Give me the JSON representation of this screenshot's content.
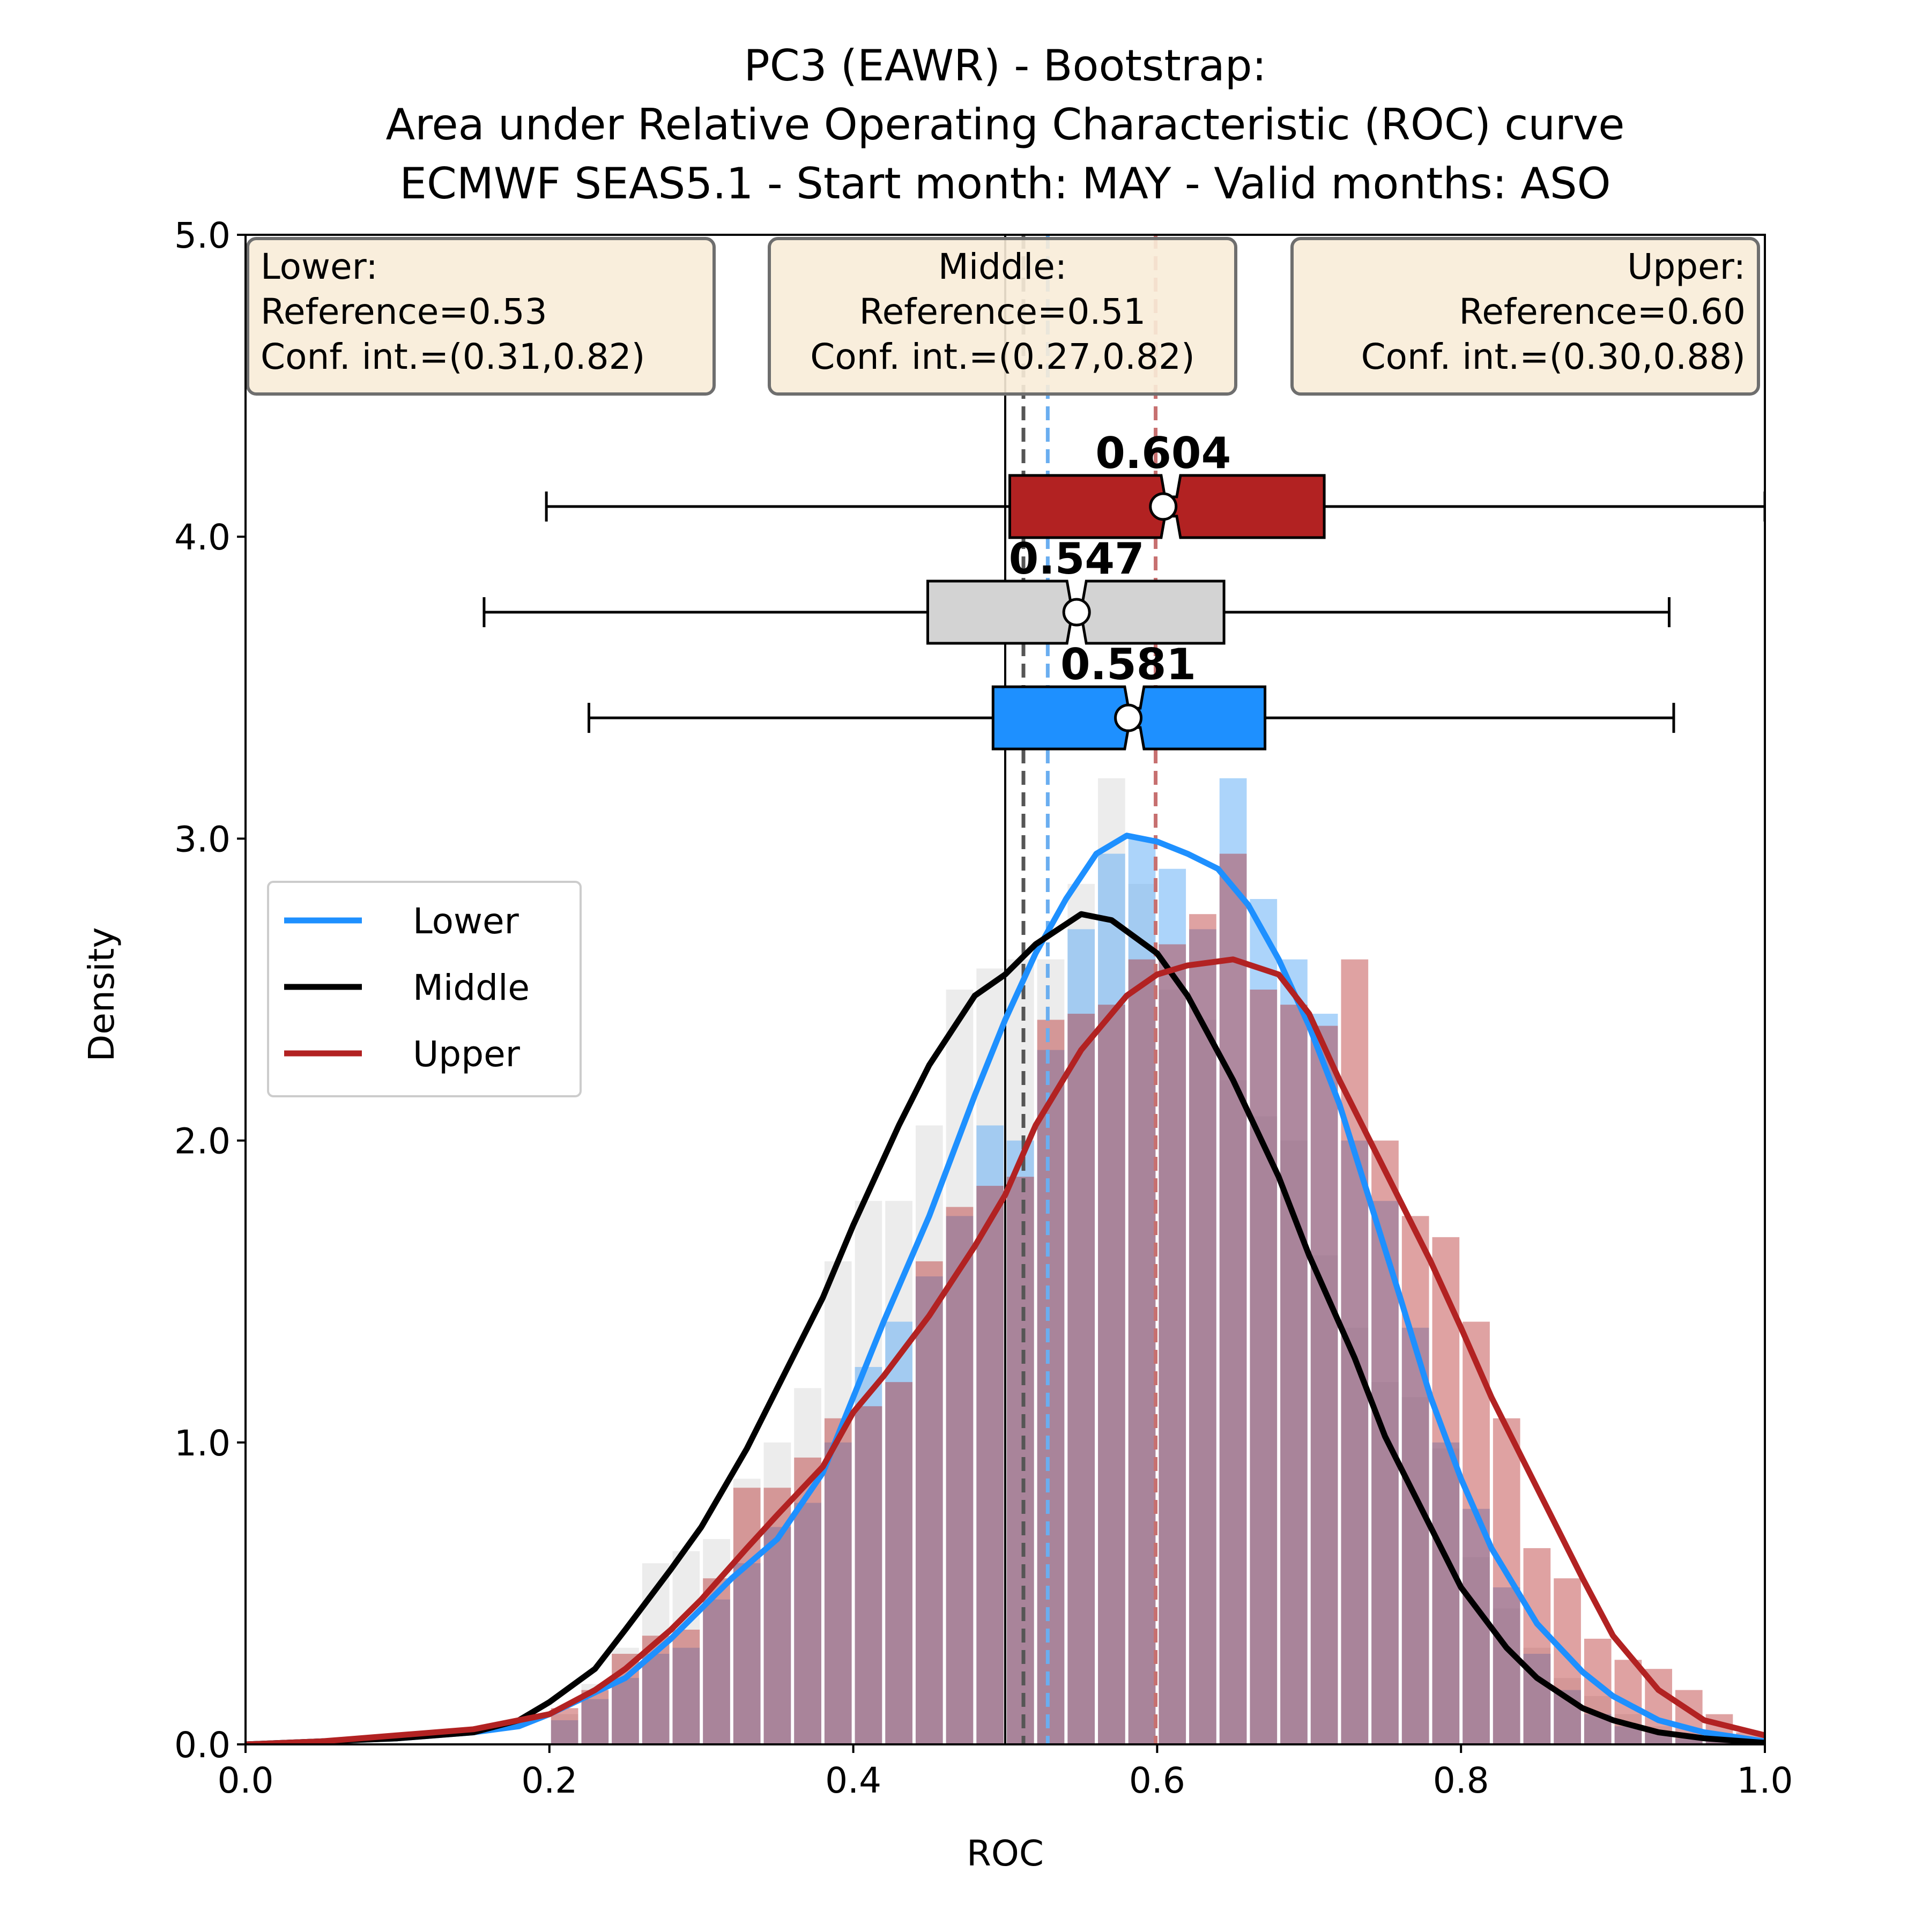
{
  "chart_data": {
    "type": "histogram+kde+boxplot",
    "title": [
      "PC3 (EAWR) - Bootstrap:",
      "Area under Relative Operating Characteristic (ROC) curve",
      "ECMWF SEAS5.1 - Start month: MAY - Valid months: ASO"
    ],
    "xlabel": "ROC",
    "ylabel": "Density",
    "xlim": [
      0.0,
      1.0
    ],
    "ylim": [
      0.0,
      5.0
    ],
    "xticks": [
      "0.0",
      "0.2",
      "0.4",
      "0.6",
      "0.8",
      "1.0"
    ],
    "yticks": [
      "0.0",
      "1.0",
      "2.0",
      "3.0",
      "4.0",
      "5.0"
    ],
    "colors": {
      "lower": "#1e90ff",
      "middle": "#000000",
      "upper": "#b22222",
      "middle_box": "#d3d3d3",
      "info_box": "#f8ecd8"
    },
    "legend": {
      "location": "center-left",
      "entries": [
        "Lower",
        "Middle",
        "Upper"
      ]
    },
    "reference_line_x": 0.5,
    "info_boxes": [
      {
        "category": "lower",
        "align": "left",
        "lines": [
          "Lower:",
          "Reference=0.53",
          "Conf. int.=(0.31,0.82)"
        ]
      },
      {
        "category": "middle",
        "align": "center",
        "lines": [
          "Middle:",
          "Reference=0.51",
          "Conf. int.=(0.27,0.82)"
        ]
      },
      {
        "category": "upper",
        "align": "right",
        "lines": [
          "Upper:",
          "Reference=0.60",
          "Conf. int.=(0.30,0.88)"
        ]
      }
    ],
    "vlines": [
      {
        "category": "middle",
        "x": 0.512,
        "color": "#555555"
      },
      {
        "category": "lower",
        "x": 0.528,
        "color": "#6aaef0"
      },
      {
        "category": "upper",
        "x": 0.599,
        "color": "#c77070"
      }
    ],
    "boxplots": [
      {
        "category": "upper",
        "y": 4.1,
        "whisker_low": 0.198,
        "q1": 0.503,
        "median": 0.609,
        "q3": 0.71,
        "whisker_high": 1.0,
        "mean": 0.604,
        "label": "0.604",
        "color": "#b22222"
      },
      {
        "category": "middle",
        "y": 3.75,
        "whisker_low": 0.157,
        "q1": 0.449,
        "median": 0.547,
        "q3": 0.644,
        "whisker_high": 0.937,
        "mean": 0.547,
        "label": "0.547",
        "color": "#d3d3d3"
      },
      {
        "category": "lower",
        "y": 3.4,
        "whisker_low": 0.226,
        "q1": 0.492,
        "median": 0.585,
        "q3": 0.671,
        "whisker_high": 0.94,
        "mean": 0.581,
        "label": "0.581",
        "color": "#1e90ff"
      }
    ],
    "histograms": {
      "bin_edges": [
        0.2,
        0.22,
        0.24,
        0.26,
        0.28,
        0.3,
        0.32,
        0.34,
        0.36,
        0.38,
        0.4,
        0.42,
        0.44,
        0.46,
        0.48,
        0.5,
        0.52,
        0.54,
        0.56,
        0.58,
        0.6,
        0.62,
        0.64,
        0.66,
        0.68,
        0.7,
        0.72,
        0.74,
        0.76,
        0.78,
        0.8,
        0.82,
        0.84,
        0.86,
        0.88,
        0.9,
        0.92,
        0.94,
        0.96,
        0.98
      ],
      "series": [
        {
          "name": "Middle",
          "color": "#e6e6e6",
          "opacity": 0.75,
          "values": [
            0.1,
            0.2,
            0.32,
            0.6,
            0.64,
            0.68,
            0.88,
            1.0,
            1.18,
            1.6,
            1.8,
            1.8,
            2.05,
            2.5,
            2.57,
            2.6,
            2.6,
            2.85,
            3.2,
            2.85,
            2.5,
            2.4,
            2.2,
            2.08,
            2.0,
            1.62,
            1.38,
            1.2,
            1.15,
            0.98,
            0.62,
            0.45,
            0.32,
            0.22,
            0.16,
            0.1,
            0.06,
            0.04,
            0.02,
            0.01
          ]
        },
        {
          "name": "Lower",
          "color": "#5aaaf5",
          "opacity": 0.5,
          "values": [
            0.08,
            0.15,
            0.22,
            0.3,
            0.32,
            0.48,
            0.6,
            0.72,
            0.8,
            1.0,
            1.25,
            1.4,
            1.55,
            1.75,
            2.05,
            2.0,
            2.3,
            2.7,
            2.95,
            3.0,
            2.9,
            2.7,
            3.2,
            2.8,
            2.6,
            2.42,
            2.0,
            1.8,
            1.38,
            1.0,
            0.78,
            0.52,
            0.3,
            0.18,
            0.1,
            0.06,
            0.04,
            0.02,
            0.01,
            0.0
          ]
        },
        {
          "name": "Upper",
          "color": "#b22222",
          "opacity": 0.42,
          "values": [
            0.12,
            0.18,
            0.3,
            0.36,
            0.38,
            0.55,
            0.85,
            0.85,
            0.95,
            1.08,
            1.12,
            1.2,
            1.6,
            1.78,
            1.85,
            1.88,
            2.4,
            2.42,
            2.45,
            2.6,
            2.65,
            2.75,
            2.95,
            2.5,
            2.45,
            2.38,
            2.6,
            2.0,
            1.75,
            1.68,
            1.4,
            1.08,
            0.65,
            0.55,
            0.35,
            0.28,
            0.25,
            0.18,
            0.1,
            0.04
          ]
        }
      ]
    },
    "kde": [
      {
        "name": "Lower",
        "color": "#1e90ff",
        "x": [
          0.0,
          0.05,
          0.1,
          0.15,
          0.18,
          0.2,
          0.25,
          0.28,
          0.3,
          0.32,
          0.35,
          0.38,
          0.4,
          0.42,
          0.45,
          0.48,
          0.5,
          0.52,
          0.54,
          0.56,
          0.58,
          0.6,
          0.62,
          0.64,
          0.66,
          0.68,
          0.7,
          0.72,
          0.74,
          0.76,
          0.78,
          0.8,
          0.82,
          0.85,
          0.88,
          0.9,
          0.93,
          0.96,
          1.0
        ],
        "y": [
          0.0,
          0.01,
          0.02,
          0.04,
          0.06,
          0.1,
          0.22,
          0.35,
          0.45,
          0.55,
          0.68,
          0.9,
          1.15,
          1.4,
          1.75,
          2.15,
          2.4,
          2.62,
          2.8,
          2.95,
          3.01,
          2.99,
          2.95,
          2.9,
          2.78,
          2.6,
          2.38,
          2.12,
          1.8,
          1.48,
          1.15,
          0.88,
          0.65,
          0.4,
          0.24,
          0.16,
          0.08,
          0.04,
          0.01
        ]
      },
      {
        "name": "Middle",
        "color": "#000000",
        "x": [
          0.0,
          0.05,
          0.1,
          0.15,
          0.18,
          0.2,
          0.23,
          0.25,
          0.28,
          0.3,
          0.33,
          0.35,
          0.38,
          0.4,
          0.43,
          0.45,
          0.48,
          0.5,
          0.52,
          0.55,
          0.57,
          0.6,
          0.62,
          0.65,
          0.68,
          0.7,
          0.73,
          0.75,
          0.78,
          0.8,
          0.83,
          0.85,
          0.88,
          0.9,
          0.93,
          0.96,
          1.0
        ],
        "y": [
          0.0,
          0.01,
          0.02,
          0.04,
          0.08,
          0.14,
          0.25,
          0.38,
          0.58,
          0.72,
          0.98,
          1.18,
          1.48,
          1.72,
          2.05,
          2.25,
          2.48,
          2.55,
          2.65,
          2.75,
          2.73,
          2.62,
          2.48,
          2.2,
          1.88,
          1.62,
          1.28,
          1.02,
          0.72,
          0.52,
          0.32,
          0.22,
          0.12,
          0.08,
          0.04,
          0.02,
          0.005
        ]
      },
      {
        "name": "Upper",
        "color": "#b22222",
        "x": [
          0.0,
          0.05,
          0.1,
          0.15,
          0.2,
          0.23,
          0.25,
          0.28,
          0.3,
          0.33,
          0.35,
          0.38,
          0.4,
          0.42,
          0.45,
          0.48,
          0.5,
          0.52,
          0.55,
          0.58,
          0.6,
          0.62,
          0.65,
          0.68,
          0.7,
          0.72,
          0.75,
          0.78,
          0.8,
          0.82,
          0.85,
          0.88,
          0.9,
          0.93,
          0.96,
          1.0
        ],
        "y": [
          0.0,
          0.01,
          0.03,
          0.05,
          0.1,
          0.18,
          0.25,
          0.38,
          0.48,
          0.65,
          0.76,
          0.92,
          1.1,
          1.22,
          1.42,
          1.65,
          1.82,
          2.05,
          2.3,
          2.48,
          2.55,
          2.58,
          2.6,
          2.55,
          2.42,
          2.2,
          1.9,
          1.6,
          1.38,
          1.15,
          0.85,
          0.55,
          0.36,
          0.18,
          0.08,
          0.03
        ]
      }
    ]
  }
}
